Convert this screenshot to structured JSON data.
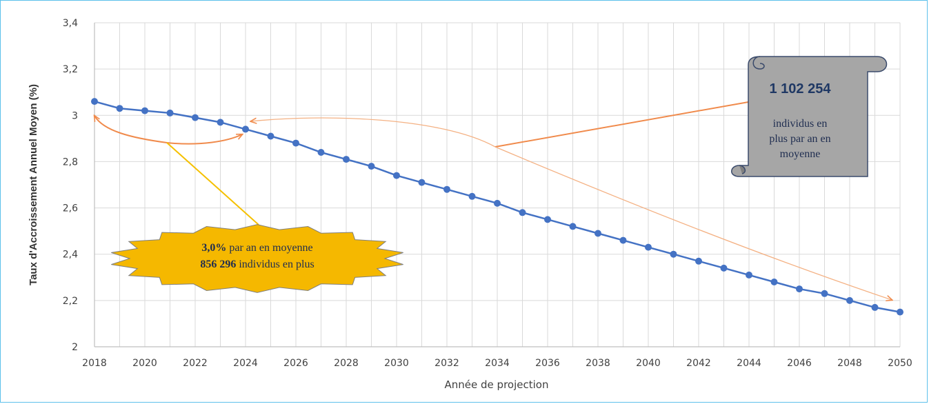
{
  "chart_data": {
    "type": "line",
    "xlabel": "Année de projection",
    "ylabel": "Taux d'Accroissement Annuel Moyen (%)",
    "xlim": [
      2018,
      2050
    ],
    "ylim": [
      2,
      3.4
    ],
    "x_ticks": [
      "2018",
      "2020",
      "2022",
      "2024",
      "2026",
      "2028",
      "2030",
      "2032",
      "2034",
      "2036",
      "2038",
      "2040",
      "2042",
      "2044",
      "2046",
      "2048",
      "2050"
    ],
    "y_ticks": [
      "2",
      "2,2",
      "2,4",
      "2,6",
      "2,8",
      "3",
      "3,2",
      "3,4"
    ],
    "grid": true,
    "series": [
      {
        "color": "#4472c4",
        "x": [
          2018,
          2019,
          2020,
          2021,
          2022,
          2023,
          2024,
          2025,
          2026,
          2027,
          2028,
          2029,
          2030,
          2031,
          2032,
          2033,
          2034,
          2035,
          2036,
          2037,
          2038,
          2039,
          2040,
          2041,
          2042,
          2043,
          2044,
          2045,
          2046,
          2047,
          2048,
          2049,
          2050
        ],
        "y": [
          3.06,
          3.03,
          3.02,
          3.01,
          2.99,
          2.97,
          2.94,
          2.91,
          2.88,
          2.84,
          2.81,
          2.78,
          2.74,
          2.71,
          2.68,
          2.65,
          2.62,
          2.58,
          2.55,
          2.52,
          2.49,
          2.46,
          2.43,
          2.4,
          2.37,
          2.34,
          2.31,
          2.28,
          2.25,
          2.23,
          2.2,
          2.17,
          2.15
        ]
      }
    ],
    "annotations": {
      "star": {
        "pct": "3,0%",
        "line1_rest": " par an en moyenne",
        "count": "856 296",
        "line2_rest": " individus en plus",
        "fill": "#f5b800"
      },
      "scroll": {
        "count": "1 102 254",
        "line1": "individus en",
        "line2": "plus par an en",
        "line3": "moyenne",
        "fill": "#a6a6a6"
      }
    }
  }
}
